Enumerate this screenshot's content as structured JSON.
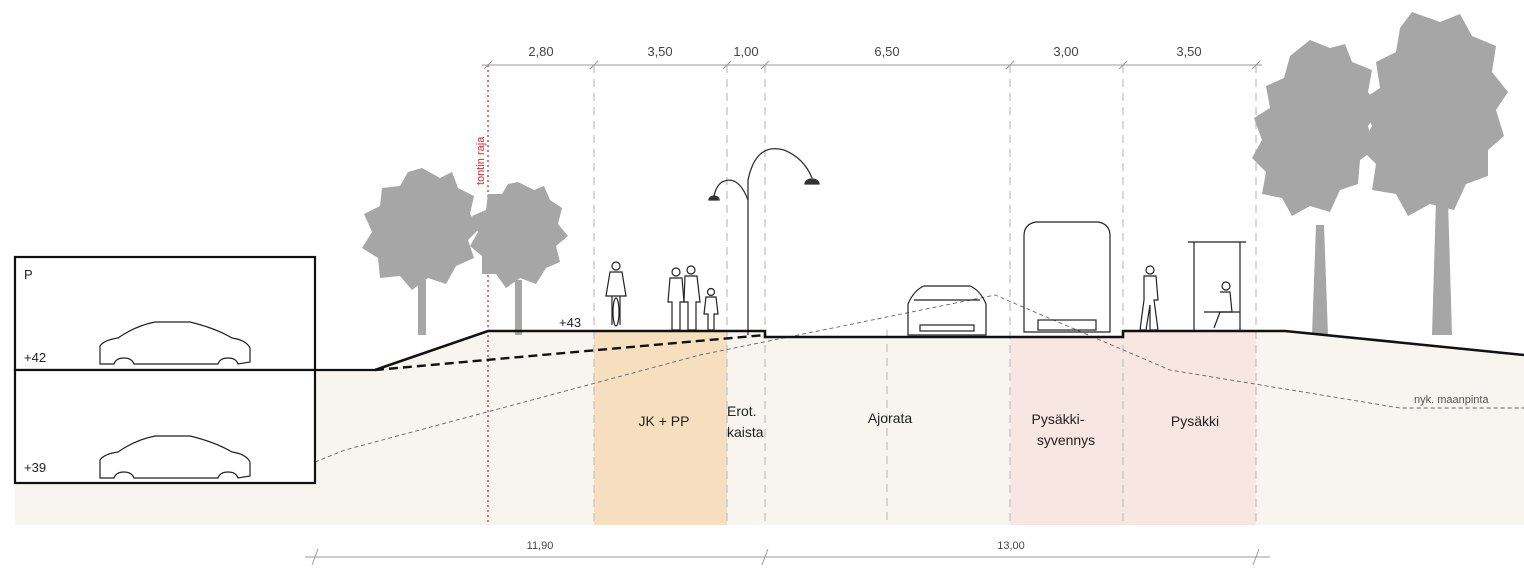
{
  "top_dimensions": [
    {
      "value": "2,80"
    },
    {
      "value": "3,50"
    },
    {
      "value": "1,00"
    },
    {
      "value": "6,50"
    },
    {
      "value": "3,00"
    },
    {
      "value": "3,50"
    }
  ],
  "bottom_dimensions": [
    {
      "value": "11,90"
    },
    {
      "value": "13,00"
    }
  ],
  "labels": {
    "property_line": "tontin raja",
    "elevation_street": "+43",
    "existing_ground": "nyk. maanpinta"
  },
  "parking": {
    "label": "P",
    "upper_level": "+42",
    "lower_level": "+39"
  },
  "zones": {
    "jk_pp": "JK + PP",
    "erot_line1": "Erot.",
    "erot_line2": "kaista",
    "ajorata": "Ajorata",
    "syvennys_line1": "Pysäkki-",
    "syvennys_line2": "syvennys",
    "pysakki": "Pysäkki"
  },
  "colors": {
    "ground": "#f8f5f0",
    "jk_pp_fill": "#f5dfbf",
    "bus_stop_fill": "#f8e6e2",
    "property_line": "#d9262c",
    "tree": "#a6a6a6"
  }
}
